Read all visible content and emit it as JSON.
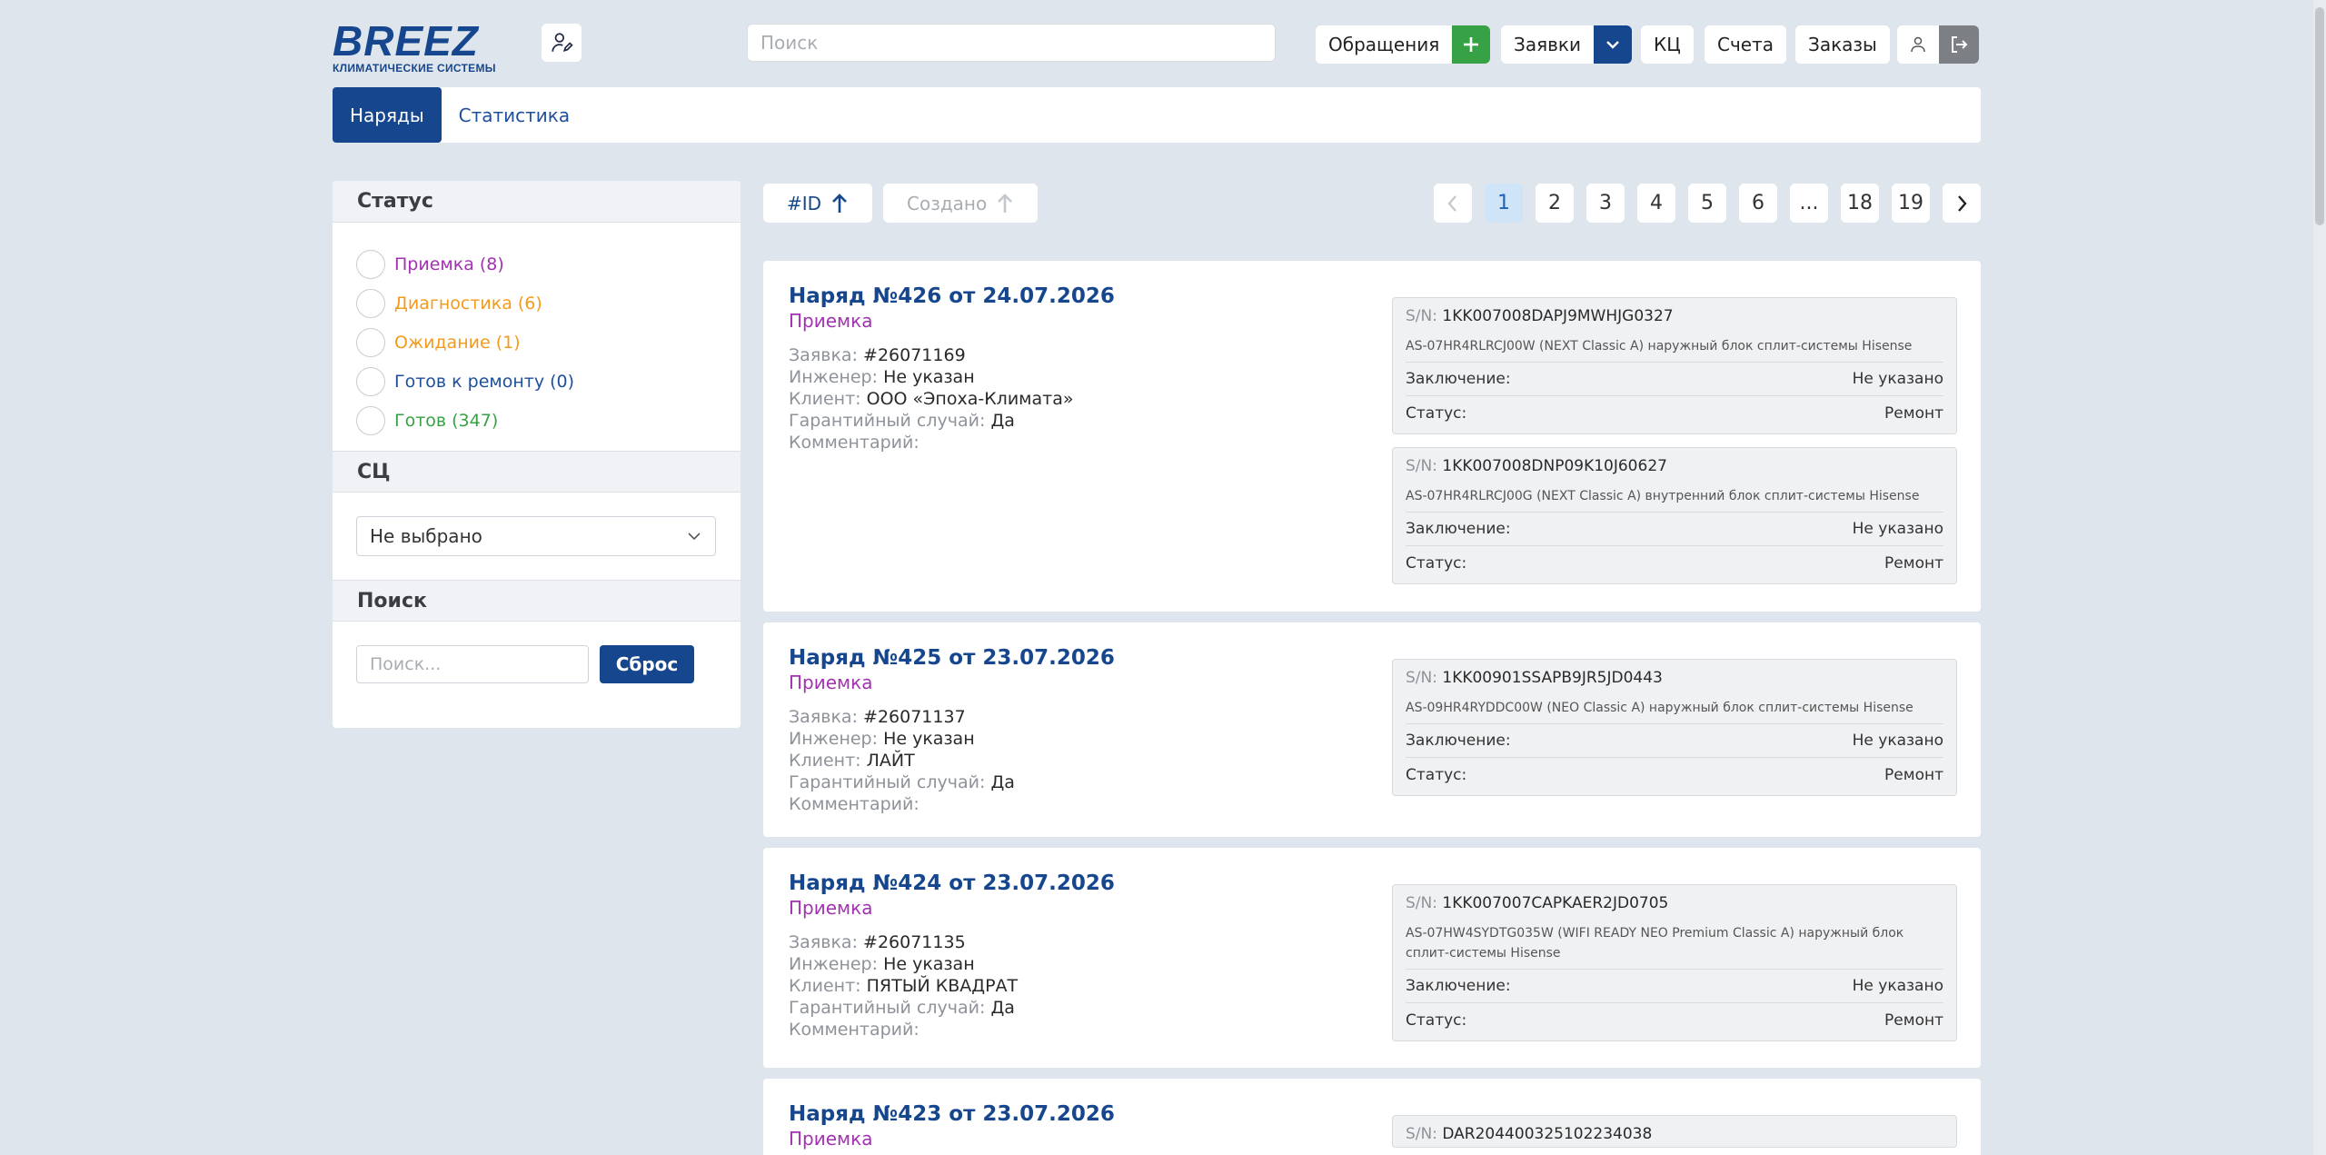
{
  "header": {
    "logo_word": "BREEZ",
    "logo_sub": "КЛИМАТИЧЕСКИЕ СИСТЕМЫ",
    "search_placeholder": "Поиск",
    "nav": {
      "appeals": "Обращения",
      "requests": "Заявки",
      "kc": "КЦ",
      "invoices": "Счета",
      "orders": "Заказы"
    }
  },
  "tabs": [
    {
      "label": "Наряды",
      "active": true
    },
    {
      "label": "Статистика",
      "active": false
    }
  ],
  "sidebar": {
    "status_title": "Статус",
    "statuses": [
      {
        "label": "Приемка (8)",
        "color": "#a132b0"
      },
      {
        "label": "Диагностика (6)",
        "color": "#f29b1d"
      },
      {
        "label": "Ожидание (1)",
        "color": "#f29b1d"
      },
      {
        "label": "Готов к ремонту (0)",
        "color": "#1e4f9b"
      },
      {
        "label": "Готов (347)",
        "color": "#37a245"
      }
    ],
    "sc_title": "СЦ",
    "sc_select": "Не выбрано",
    "search_title": "Поиск",
    "search_placeholder": "Поиск...",
    "reset": "Сброс"
  },
  "sort": {
    "id": "#ID",
    "created": "Создано"
  },
  "pagination": [
    "1",
    "2",
    "3",
    "4",
    "5",
    "6",
    "...",
    "18",
    "19"
  ],
  "labels": {
    "request": "Заявка:",
    "engineer": "Инженер:",
    "client": "Клиент:",
    "warranty": "Гарантийный случай:",
    "comment": "Комментарий:",
    "sn": "S/N:",
    "conclusion": "Заключение:",
    "status": "Статус:"
  },
  "orders": [
    {
      "title": "Наряд №426 от 24.07.2026",
      "status": "Приемка",
      "request": "#26071169",
      "engineer": "Не указан",
      "client": "ООО «Эпоха-Климата»",
      "warranty": "Да",
      "comment": "",
      "units": [
        {
          "sn": "1KK007008DAPJ9MWHJG0327",
          "desc": "AS-07HR4RLRCJ00W (NEXT Classic A) наружный блок сплит-системы Hisense",
          "conclusion": "Не указано",
          "status": "Ремонт"
        },
        {
          "sn": "1KK007008DNP09K10J60627",
          "desc": "AS-07HR4RLRCJ00G (NEXT Classic A) внутренний блок сплит-системы Hisense",
          "conclusion": "Не указано",
          "status": "Ремонт"
        }
      ]
    },
    {
      "title": "Наряд №425 от 23.07.2026",
      "status": "Приемка",
      "request": "#26071137",
      "engineer": "Не указан",
      "client": "ЛАЙТ",
      "warranty": "Да",
      "comment": "",
      "units": [
        {
          "sn": "1KK00901SSAPB9JR5JD0443",
          "desc": "AS-09HR4RYDDC00W (NEO Classic A) наружный блок сплит-системы Hisense",
          "conclusion": "Не указано",
          "status": "Ремонт"
        }
      ]
    },
    {
      "title": "Наряд №424 от 23.07.2026",
      "status": "Приемка",
      "request": "#26071135",
      "engineer": "Не указан",
      "client": "ПЯТЫЙ КВАДРАТ",
      "warranty": "Да",
      "comment": "",
      "units": [
        {
          "sn": "1KK007007CAPKAER2JD0705",
          "desc": "AS-07HW4SYDTG035W (WIFI READY NEO Premium Classic A) наружный блок сплит-системы Hisense",
          "conclusion": "Не указано",
          "status": "Ремонт"
        }
      ]
    },
    {
      "title": "Наряд №423 от 23.07.2026",
      "status": "Приемка",
      "units": [
        {
          "sn": "DAR20440032510223403​8"
        }
      ]
    }
  ]
}
